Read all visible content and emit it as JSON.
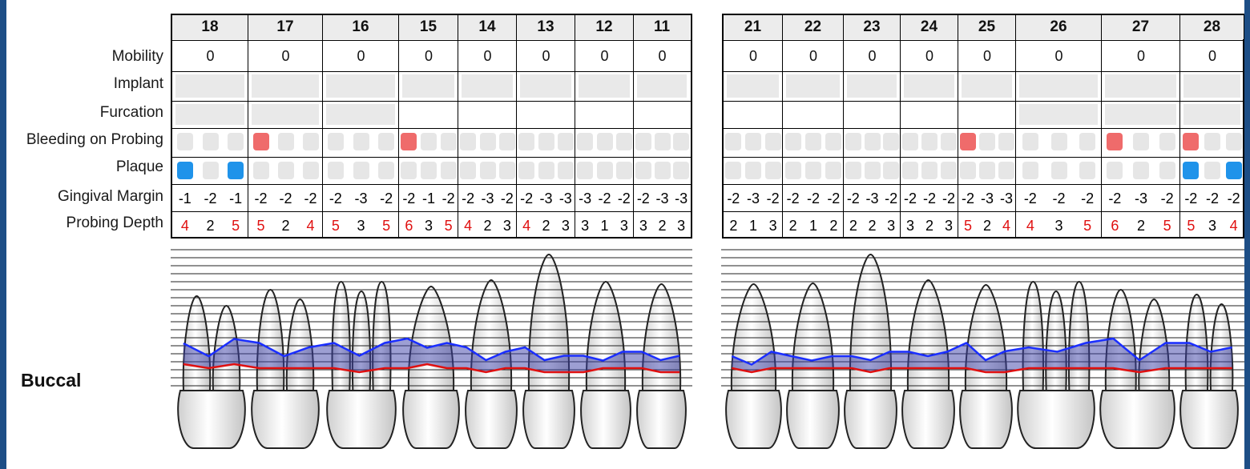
{
  "row_labels": {
    "mobility": "Mobility",
    "implant": "Implant",
    "furcation": "Furcation",
    "bleeding": "Bleeding on Probing",
    "plaque": "Plaque",
    "gingival": "Gingival Margin",
    "probing": "Probing Depth"
  },
  "view_label": "Buccal",
  "colors": {
    "bleeding": "#ef6b6b",
    "plaque": "#1f93ea",
    "pocket_fill": "#3b3fa8",
    "pocket_line": "#1a2eff",
    "margin_line": "#e01010",
    "frame": "#1d4e86"
  },
  "quadrants": [
    {
      "teeth": [
        {
          "number": "18",
          "mobility": "0",
          "implant": true,
          "furcation": true,
          "bleeding": [
            false,
            false,
            false
          ],
          "plaque": [
            true,
            false,
            true
          ],
          "gingival": [
            "-1",
            "-2",
            "-1"
          ],
          "probing": [
            "4",
            "2",
            "5"
          ],
          "probing_red": [
            true,
            false,
            true
          ]
        },
        {
          "number": "17",
          "mobility": "0",
          "implant": true,
          "furcation": true,
          "bleeding": [
            true,
            false,
            false
          ],
          "plaque": [
            false,
            false,
            false
          ],
          "gingival": [
            "-2",
            "-2",
            "-2"
          ],
          "probing": [
            "5",
            "2",
            "4"
          ],
          "probing_red": [
            true,
            false,
            true
          ]
        },
        {
          "number": "16",
          "mobility": "0",
          "implant": true,
          "furcation": true,
          "bleeding": [
            false,
            false,
            false
          ],
          "plaque": [
            false,
            false,
            false
          ],
          "gingival": [
            "-2",
            "-3",
            "-2"
          ],
          "probing": [
            "5",
            "3",
            "5"
          ],
          "probing_red": [
            true,
            false,
            true
          ]
        },
        {
          "number": "15",
          "mobility": "0",
          "implant": true,
          "furcation": false,
          "bleeding": [
            true,
            false,
            false
          ],
          "plaque": [
            false,
            false,
            false
          ],
          "gingival": [
            "-2",
            "-1",
            "-2"
          ],
          "probing": [
            "6",
            "3",
            "5"
          ],
          "probing_red": [
            true,
            false,
            true
          ]
        },
        {
          "number": "14",
          "mobility": "0",
          "implant": true,
          "furcation": false,
          "bleeding": [
            false,
            false,
            false
          ],
          "plaque": [
            false,
            false,
            false
          ],
          "gingival": [
            "-2",
            "-3",
            "-2"
          ],
          "probing": [
            "4",
            "2",
            "3"
          ],
          "probing_red": [
            true,
            false,
            false
          ]
        },
        {
          "number": "13",
          "mobility": "0",
          "implant": true,
          "furcation": false,
          "bleeding": [
            false,
            false,
            false
          ],
          "plaque": [
            false,
            false,
            false
          ],
          "gingival": [
            "-2",
            "-3",
            "-3"
          ],
          "probing": [
            "4",
            "2",
            "3"
          ],
          "probing_red": [
            true,
            false,
            false
          ]
        },
        {
          "number": "12",
          "mobility": "0",
          "implant": true,
          "furcation": false,
          "bleeding": [
            false,
            false,
            false
          ],
          "plaque": [
            false,
            false,
            false
          ],
          "gingival": [
            "-3",
            "-2",
            "-2"
          ],
          "probing": [
            "3",
            "1",
            "3"
          ],
          "probing_red": [
            false,
            false,
            false
          ]
        },
        {
          "number": "11",
          "mobility": "0",
          "implant": true,
          "furcation": false,
          "bleeding": [
            false,
            false,
            false
          ],
          "plaque": [
            false,
            false,
            false
          ],
          "gingival": [
            "-2",
            "-3",
            "-3"
          ],
          "probing": [
            "3",
            "2",
            "3"
          ],
          "probing_red": [
            false,
            false,
            false
          ]
        }
      ]
    },
    {
      "teeth": [
        {
          "number": "21",
          "mobility": "0",
          "implant": true,
          "furcation": false,
          "bleeding": [
            false,
            false,
            false
          ],
          "plaque": [
            false,
            false,
            false
          ],
          "gingival": [
            "-2",
            "-3",
            "-2"
          ],
          "probing": [
            "2",
            "1",
            "3"
          ],
          "probing_red": [
            false,
            false,
            false
          ]
        },
        {
          "number": "22",
          "mobility": "0",
          "implant": true,
          "furcation": false,
          "bleeding": [
            false,
            false,
            false
          ],
          "plaque": [
            false,
            false,
            false
          ],
          "gingival": [
            "-2",
            "-2",
            "-2"
          ],
          "probing": [
            "2",
            "1",
            "2"
          ],
          "probing_red": [
            false,
            false,
            false
          ]
        },
        {
          "number": "23",
          "mobility": "0",
          "implant": true,
          "furcation": false,
          "bleeding": [
            false,
            false,
            false
          ],
          "plaque": [
            false,
            false,
            false
          ],
          "gingival": [
            "-2",
            "-3",
            "-2"
          ],
          "probing": [
            "2",
            "2",
            "3"
          ],
          "probing_red": [
            false,
            false,
            false
          ]
        },
        {
          "number": "24",
          "mobility": "0",
          "implant": true,
          "furcation": false,
          "bleeding": [
            false,
            false,
            false
          ],
          "plaque": [
            false,
            false,
            false
          ],
          "gingival": [
            "-2",
            "-2",
            "-2"
          ],
          "probing": [
            "3",
            "2",
            "3"
          ],
          "probing_red": [
            false,
            false,
            false
          ]
        },
        {
          "number": "25",
          "mobility": "0",
          "implant": true,
          "furcation": false,
          "bleeding": [
            true,
            false,
            false
          ],
          "plaque": [
            false,
            false,
            false
          ],
          "gingival": [
            "-2",
            "-3",
            "-3"
          ],
          "probing": [
            "5",
            "2",
            "4"
          ],
          "probing_red": [
            true,
            false,
            true
          ]
        },
        {
          "number": "26",
          "mobility": "0",
          "implant": true,
          "furcation": true,
          "bleeding": [
            false,
            false,
            false
          ],
          "plaque": [
            false,
            false,
            false
          ],
          "gingival": [
            "-2",
            "-2",
            "-2"
          ],
          "probing": [
            "4",
            "3",
            "5"
          ],
          "probing_red": [
            true,
            false,
            true
          ]
        },
        {
          "number": "27",
          "mobility": "0",
          "implant": true,
          "furcation": true,
          "bleeding": [
            true,
            false,
            false
          ],
          "plaque": [
            false,
            false,
            false
          ],
          "gingival": [
            "-2",
            "-3",
            "-2"
          ],
          "probing": [
            "6",
            "2",
            "5"
          ],
          "probing_red": [
            true,
            false,
            true
          ]
        },
        {
          "number": "28",
          "mobility": "0",
          "implant": true,
          "furcation": true,
          "bleeding": [
            true,
            false,
            false
          ],
          "plaque": [
            true,
            false,
            true
          ],
          "gingival": [
            "-2",
            "-2",
            "-2"
          ],
          "probing": [
            "5",
            "3",
            "4"
          ],
          "probing_red": [
            true,
            false,
            true
          ]
        }
      ]
    }
  ]
}
